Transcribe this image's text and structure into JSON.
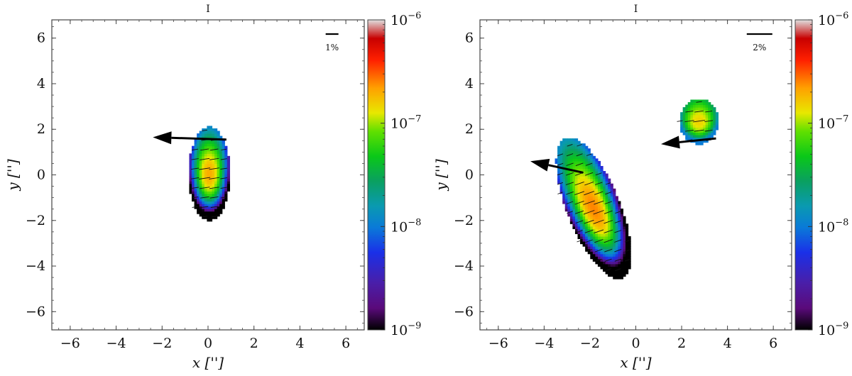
{
  "chart_data": [
    {
      "type": "heatmap",
      "title": "I",
      "xlabel": "x ['']",
      "ylabel": "y ['']",
      "xlim": [
        -6.8,
        6.8
      ],
      "ylim": [
        -6.8,
        6.8
      ],
      "xticks": [
        -6,
        -4,
        -2,
        0,
        2,
        4,
        6
      ],
      "yticks": [
        -6,
        -4,
        -2,
        0,
        2,
        4,
        6
      ],
      "grid": false,
      "colorbar": {
        "scale": "log",
        "range": [
          1e-09,
          1e-06
        ],
        "ticks": [
          {
            "value": 1e-09,
            "label": "10−9"
          },
          {
            "value": 1e-08,
            "label": "10−8"
          },
          {
            "value": 1e-07,
            "label": "10−7"
          },
          {
            "value": 1e-06,
            "label": "10−6"
          }
        ]
      },
      "scale_bar": {
        "label": "1%",
        "length_percent": 1
      },
      "sources": [
        {
          "center": [
            0.0,
            0.0
          ],
          "semi_axes": [
            0.9,
            2.05
          ],
          "angle_deg": 0,
          "peak": 2e-07,
          "edge": 1e-09
        }
      ],
      "arrows": [
        {
          "from": [
            0.8,
            1.55
          ],
          "to": [
            -2.4,
            1.65
          ]
        }
      ]
    },
    {
      "type": "heatmap",
      "title": "I",
      "xlabel": "x ['']",
      "ylabel": "y ['']",
      "xlim": [
        -6.8,
        6.8
      ],
      "ylim": [
        -6.8,
        6.8
      ],
      "xticks": [
        -6,
        -4,
        -2,
        0,
        2,
        4,
        6
      ],
      "yticks": [
        -6,
        -4,
        -2,
        0,
        2,
        4,
        6
      ],
      "grid": false,
      "colorbar": {
        "scale": "log",
        "range": [
          1e-09,
          1e-06
        ],
        "ticks": [
          {
            "value": 1e-09,
            "label": "10−9"
          },
          {
            "value": 1e-08,
            "label": "10−8"
          },
          {
            "value": 1e-07,
            "label": "10−7"
          },
          {
            "value": 1e-06,
            "label": "10−6"
          }
        ]
      },
      "scale_bar": {
        "label": "2%",
        "length_percent": 2
      },
      "sources": [
        {
          "center": [
            -1.9,
            -1.5
          ],
          "semi_axes": [
            1.15,
            3.3
          ],
          "angle_deg": 22,
          "peak": 2.5e-07,
          "edge": 1e-09
        },
        {
          "center": [
            2.7,
            2.3
          ],
          "semi_axes": [
            0.85,
            1.0
          ],
          "angle_deg": 0,
          "peak": 1.5e-07,
          "edge": 1e-08
        }
      ],
      "arrows": [
        {
          "from": [
            -2.3,
            0.1
          ],
          "to": [
            -4.6,
            0.6
          ]
        },
        {
          "from": [
            3.5,
            1.6
          ],
          "to": [
            1.1,
            1.35
          ]
        }
      ]
    }
  ]
}
